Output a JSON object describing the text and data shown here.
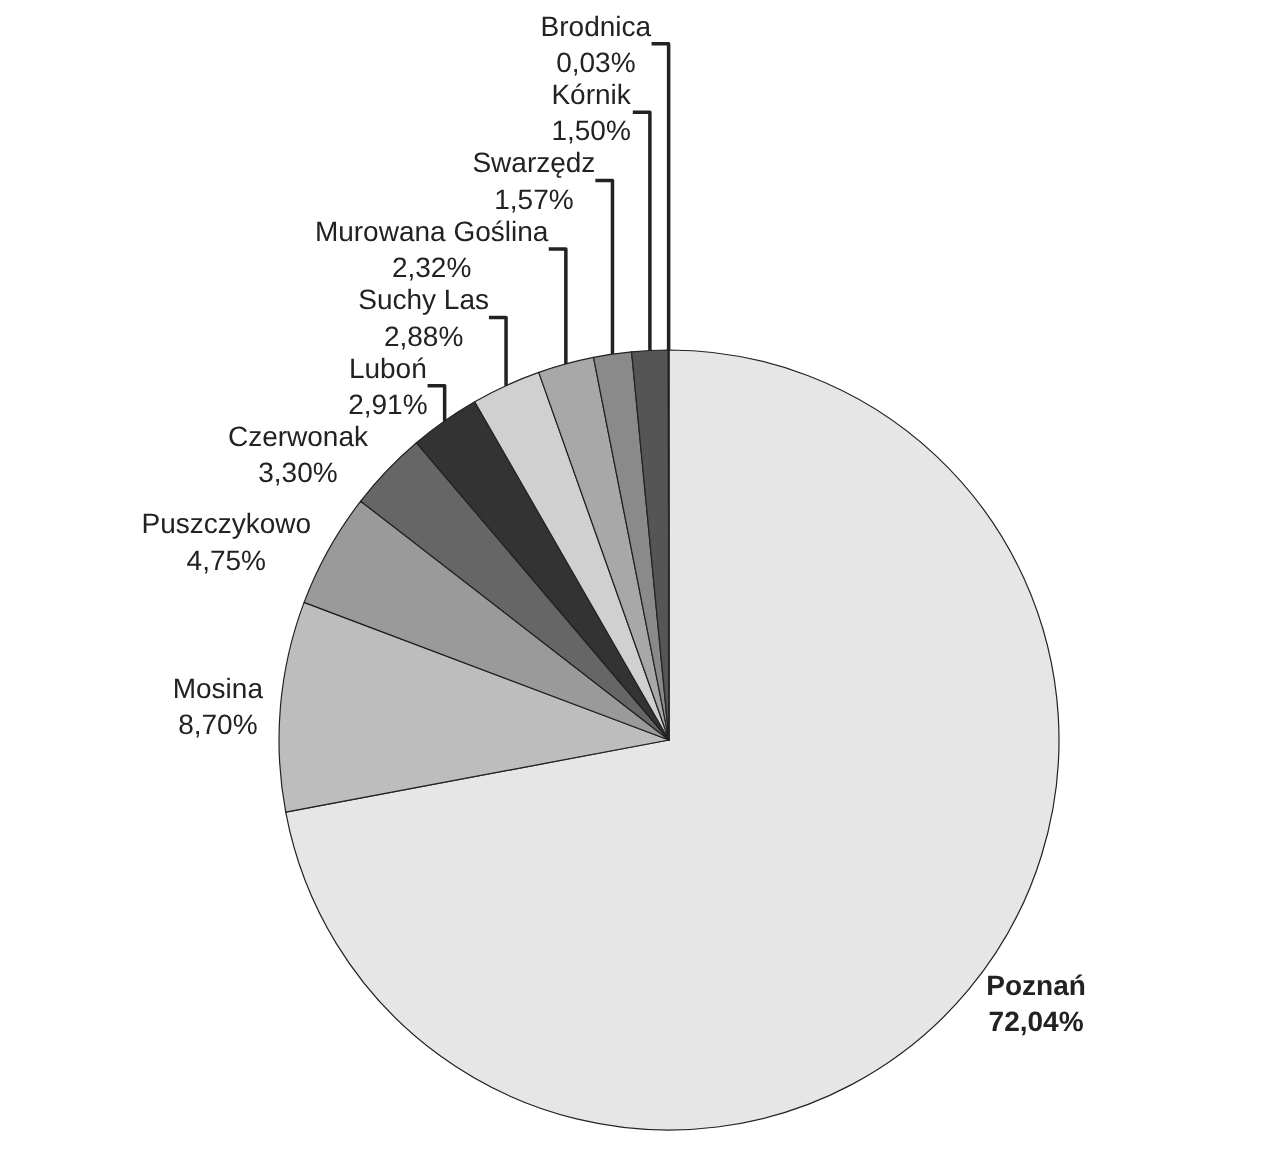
{
  "chart_data": {
    "type": "pie",
    "categories": [
      "Poznań",
      "Mosina",
      "Puszczykowo",
      "Czerwonak",
      "Luboń",
      "Suchy Las",
      "Murowana Goślina",
      "Swarzędz",
      "Kórnik",
      "Brodnica"
    ],
    "values": [
      72.04,
      8.7,
      4.75,
      3.3,
      2.91,
      2.88,
      2.32,
      1.57,
      1.5,
      0.03
    ],
    "value_labels": [
      "72,04%",
      "8,70%",
      "4,75%",
      "3,30%",
      "2,91%",
      "2,88%",
      "2,32%",
      "1,57%",
      "1,50%",
      "0,03%"
    ],
    "colors": [
      "#e6e6e6",
      "#bdbdbd",
      "#9a9a9a",
      "#666666",
      "#333333",
      "#d0d0d0",
      "#a8a8a8",
      "#8a8a8a",
      "#555555",
      "#444444"
    ],
    "legend": false
  }
}
